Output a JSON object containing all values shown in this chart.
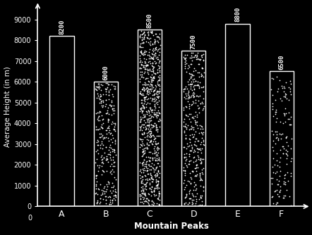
{
  "categories": [
    "A",
    "B",
    "C",
    "D",
    "E",
    "F"
  ],
  "values": [
    8200,
    6000,
    8500,
    7500,
    8800,
    6500
  ],
  "xlabel": "Mountain Peaks",
  "ylabel": "Average Height (in m)",
  "ylim": [
    0,
    9600
  ],
  "yticks": [
    0,
    1000,
    2000,
    3000,
    4000,
    5000,
    6000,
    7000,
    8000,
    9000
  ],
  "background_color": "#000000",
  "text_color": "#ffffff",
  "bar_edge_color": "#ffffff",
  "value_labels": [
    "8200",
    "6000",
    "8500",
    "7500",
    "8800",
    "6500"
  ],
  "dot_densities": [
    0,
    300,
    800,
    400,
    0,
    150
  ],
  "bar_face_alpha": [
    0,
    1,
    1,
    1,
    0,
    1
  ],
  "bar_facecolors": [
    "none",
    "black",
    "black",
    "black",
    "none",
    "black"
  ]
}
